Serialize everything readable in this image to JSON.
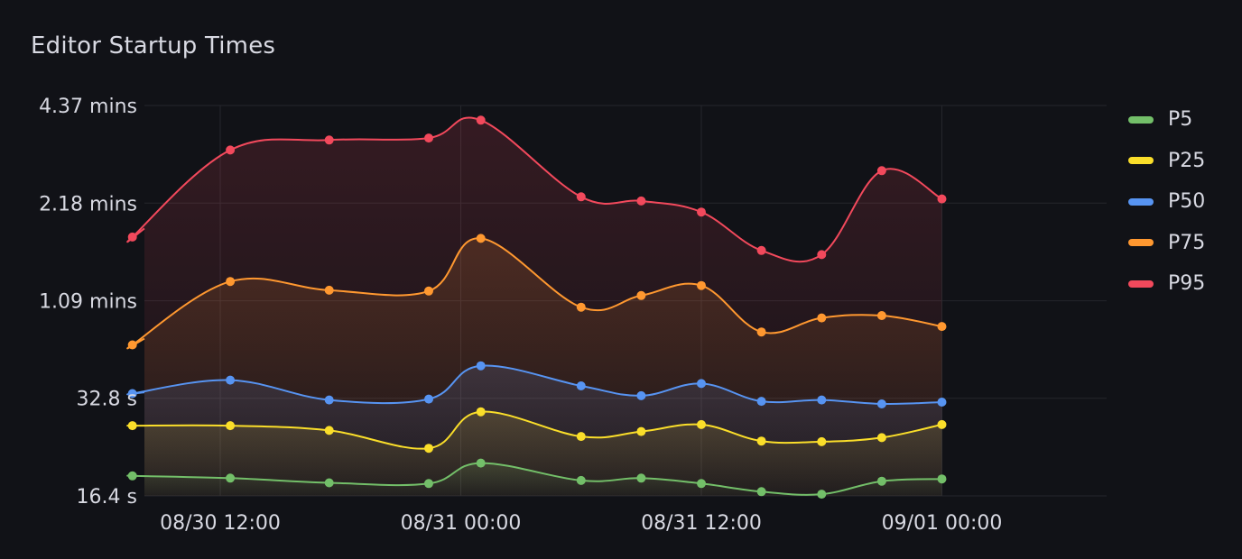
{
  "panel": {
    "title": "Editor Startup Times"
  },
  "chart_data": {
    "type": "line",
    "title": "Editor Startup Times",
    "y_scale": "log2",
    "y_unit": "seconds",
    "y_ticks": [
      {
        "value": 16.4,
        "label": "16.4 s"
      },
      {
        "value": 32.8,
        "label": "32.8 s"
      },
      {
        "value": 65.5,
        "label": "1.09 mins"
      },
      {
        "value": 131,
        "label": "2.18 mins"
      },
      {
        "value": 262,
        "label": "4.37 mins"
      }
    ],
    "x_ticks": [
      "08/30 12:00",
      "08/31 00:00",
      "08/31 12:00",
      "09/01 00:00"
    ],
    "x_tick_times": [
      "2023-08-30 12:00",
      "2023-08-31 00:00",
      "2023-08-31 12:00",
      "2023-09-01 00:00"
    ],
    "x": [
      "2023-08-30 07:37",
      "2023-08-30 12:30",
      "2023-08-30 17:26",
      "2023-08-30 22:24",
      "2023-08-31 01:00",
      "2023-08-31 06:00",
      "2023-08-31 09:00",
      "2023-08-31 12:00",
      "2023-08-31 15:00",
      "2023-08-31 18:00",
      "2023-08-31 21:00",
      "2023-09-01 00:00"
    ],
    "series": [
      {
        "name": "P5",
        "color": "#73bf69",
        "values": [
          18.9,
          18.6,
          18.0,
          17.9,
          20.7,
          18.3,
          18.6,
          17.9,
          16.9,
          16.6,
          18.2,
          18.5
        ]
      },
      {
        "name": "P25",
        "color": "#fade2a",
        "values": [
          27.0,
          27.0,
          26.1,
          23.0,
          29.8,
          25.0,
          25.9,
          27.2,
          24.2,
          24.1,
          24.8,
          27.2
        ]
      },
      {
        "name": "P50",
        "color": "#5794f2",
        "values": [
          33.9,
          37.3,
          32.4,
          32.6,
          41.3,
          35.8,
          33.4,
          36.4,
          32.1,
          32.4,
          31.5,
          31.9
        ]
      },
      {
        "name": "P75",
        "color": "#ff9830",
        "values": [
          47.9,
          75.1,
          70.6,
          70.2,
          102,
          62.6,
          68.0,
          73.0,
          52.5,
          58.0,
          59.0,
          54.6
        ]
      },
      {
        "name": "P95",
        "color": "#f2495c",
        "values": [
          103,
          191,
          205,
          208,
          236,
          137,
          133,
          123,
          93.6,
          90.9,
          165,
          135
        ]
      }
    ],
    "legend_position": "right",
    "grid": true
  }
}
